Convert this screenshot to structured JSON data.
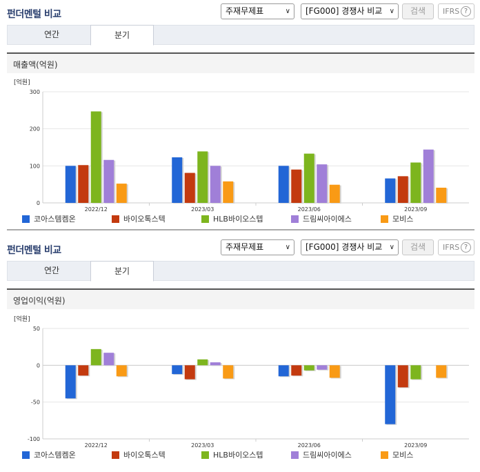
{
  "panels": [
    {
      "title": "펀더멘털 비교",
      "select_statement": "주재무제표",
      "select_compare": "[FG000] 경쟁사 비교",
      "search_label": "검색",
      "ifrs_label": "IFRS",
      "help_glyph": "?",
      "tabs": [
        {
          "label": "연간"
        },
        {
          "label": "분기"
        }
      ],
      "section_title": "매출액(억원)"
    },
    {
      "title": "펀더멘털 비교",
      "select_statement": "주재무제표",
      "select_compare": "[FG000] 경쟁사 비교",
      "search_label": "검색",
      "ifrs_label": "IFRS",
      "help_glyph": "?",
      "tabs": [
        {
          "label": "연간"
        },
        {
          "label": "분기"
        }
      ],
      "section_title": "영업이익(억원)"
    }
  ],
  "chart_data": [
    {
      "type": "bar",
      "unit_label": "[억원]",
      "categories": [
        "2022/12",
        "2023/03",
        "2023/06",
        "2023/09"
      ],
      "ylim": [
        0,
        300
      ],
      "yticks": [
        0,
        100,
        200,
        300
      ],
      "legend_position": "bottom",
      "series": [
        {
          "name": "코아스템켐온",
          "color": "#2266d6",
          "values": [
            100,
            123,
            100,
            66
          ]
        },
        {
          "name": "바이오톡스텍",
          "color": "#c33a0f",
          "values": [
            102,
            81,
            90,
            72
          ]
        },
        {
          "name": "HLB바이오스텝",
          "color": "#7db51e",
          "values": [
            247,
            139,
            133,
            109
          ]
        },
        {
          "name": "드림씨아이에스",
          "color": "#a07fd8",
          "values": [
            116,
            100,
            104,
            144
          ]
        },
        {
          "name": "모비스",
          "color": "#f99a15",
          "values": [
            52,
            58,
            49,
            41
          ]
        }
      ]
    },
    {
      "type": "bar",
      "unit_label": "[억원]",
      "categories": [
        "2022/12",
        "2023/03",
        "2023/06",
        "2023/09"
      ],
      "ylim": [
        -100,
        50
      ],
      "yticks": [
        -100,
        -50,
        0,
        50
      ],
      "legend_position": "bottom",
      "series": [
        {
          "name": "코아스템켐온",
          "color": "#2266d6",
          "values": [
            -45,
            -12,
            -15,
            -80
          ]
        },
        {
          "name": "바이오톡스텍",
          "color": "#c33a0f",
          "values": [
            -14,
            -19,
            -14,
            -30
          ]
        },
        {
          "name": "HLB바이오스텝",
          "color": "#7db51e",
          "values": [
            22,
            8,
            -7,
            -19
          ]
        },
        {
          "name": "드림씨아이에스",
          "color": "#a07fd8",
          "values": [
            17,
            4,
            -6,
            0
          ]
        },
        {
          "name": "모비스",
          "color": "#f99a15",
          "values": [
            -15,
            -18,
            -17,
            -17
          ]
        }
      ]
    }
  ]
}
